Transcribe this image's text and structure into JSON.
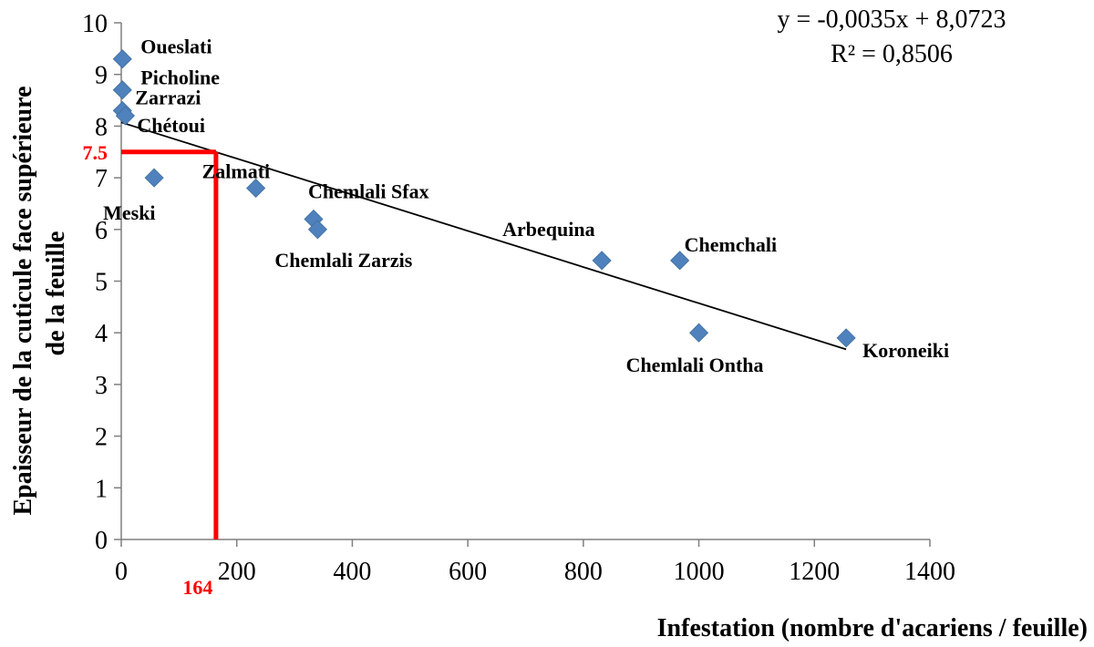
{
  "chart_data": {
    "type": "scatter",
    "xlabel": "Infestation (nombre d'acariens / feuille)",
    "ylabel_line1": "Epaisseur de la cuticule face supérieure",
    "ylabel_line2": "de la feuille",
    "xlim": [
      0,
      1400
    ],
    "ylim": [
      0,
      10
    ],
    "xticks": [
      0,
      200,
      400,
      600,
      800,
      1000,
      1200,
      1400
    ],
    "yticks": [
      0,
      1,
      2,
      3,
      4,
      5,
      6,
      7,
      8,
      9,
      10
    ],
    "grid": false,
    "marker_color": "#4F81BD",
    "series": [
      {
        "points": [
          {
            "label": "Oueslati",
            "x": 2,
            "y": 9.3
          },
          {
            "label": "Picholine",
            "x": 2,
            "y": 8.7
          },
          {
            "label": "Zarrazi",
            "x": 2,
            "y": 8.3
          },
          {
            "label": "Chétoui",
            "x": 7,
            "y": 8.2
          },
          {
            "label": "Meski",
            "x": 57,
            "y": 7.0
          },
          {
            "label": "Zalmati",
            "x": 233,
            "y": 6.8
          },
          {
            "label": "Chemlali  Sfax",
            "x": 333,
            "y": 6.2
          },
          {
            "label": "Chemlali  Zarzis",
            "x": 340,
            "y": 6.0
          },
          {
            "label": "Arbequina",
            "x": 832,
            "y": 5.4
          },
          {
            "label": "Chemchali",
            "x": 967,
            "y": 5.4
          },
          {
            "label": "Chemlali Ontha",
            "x": 1000,
            "y": 4.0
          },
          {
            "label": "Koroneiki",
            "x": 1255,
            "y": 3.9
          }
        ]
      }
    ],
    "trendline": {
      "slope": -0.0035,
      "intercept": 8.0723,
      "x_range": [
        0,
        1255
      ],
      "equation": "y = -0,0035x + 8,0723",
      "r2": "R² = 0,8506"
    },
    "reference": {
      "x": 164,
      "y": 7.5,
      "x_label": "164",
      "y_label": "7.5",
      "color": "#ff0000"
    }
  }
}
